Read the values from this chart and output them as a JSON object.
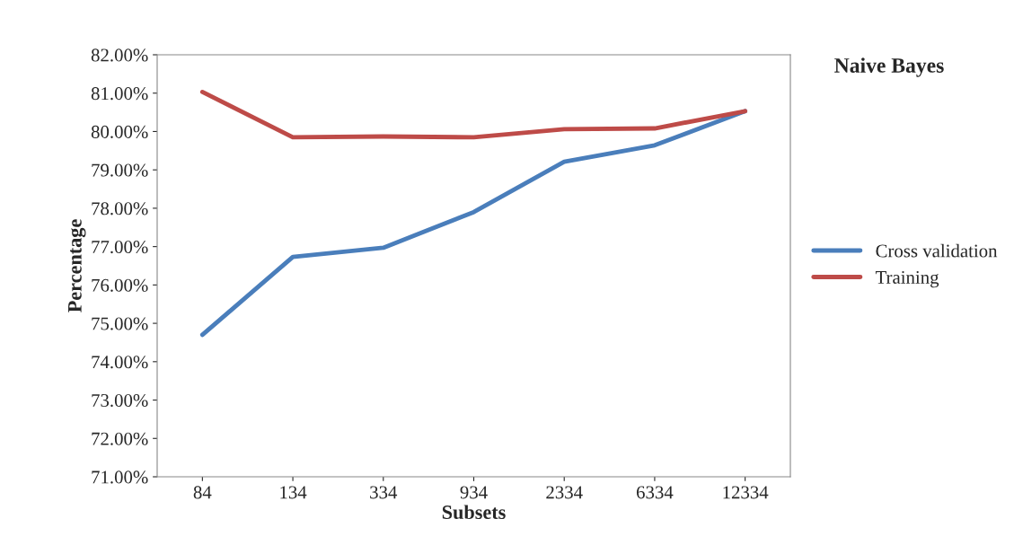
{
  "chart_data": {
    "type": "line",
    "title": "Naive Bayes",
    "xlabel": "Subsets",
    "ylabel": "Percentage",
    "categories": [
      "84",
      "134",
      "334",
      "934",
      "2334",
      "6334",
      "12334"
    ],
    "series": [
      {
        "name": "Cross validation",
        "color": "#4a7ebb",
        "values": [
          74.7,
          76.73,
          76.97,
          77.9,
          79.21,
          79.64,
          80.53
        ]
      },
      {
        "name": "Training",
        "color": "#be4b48",
        "values": [
          81.03,
          79.85,
          79.87,
          79.85,
          80.06,
          80.08,
          80.53
        ]
      }
    ],
    "ylim": [
      71,
      82
    ],
    "yticks": [
      {
        "value": 71,
        "label": "71.00%"
      },
      {
        "value": 72,
        "label": "72.00%"
      },
      {
        "value": 73,
        "label": "73.00%"
      },
      {
        "value": 74,
        "label": "74.00%"
      },
      {
        "value": 75,
        "label": "75.00%"
      },
      {
        "value": 76,
        "label": "76.00%"
      },
      {
        "value": 77,
        "label": "77.00%"
      },
      {
        "value": 78,
        "label": "78.00%"
      },
      {
        "value": 79,
        "label": "79.00%"
      },
      {
        "value": 80,
        "label": "80.00%"
      },
      {
        "value": 81,
        "label": "81.00%"
      },
      {
        "value": 82,
        "label": "82.00%"
      }
    ],
    "legend": "right",
    "grid": false,
    "marker": "none",
    "line_style": "solid"
  }
}
